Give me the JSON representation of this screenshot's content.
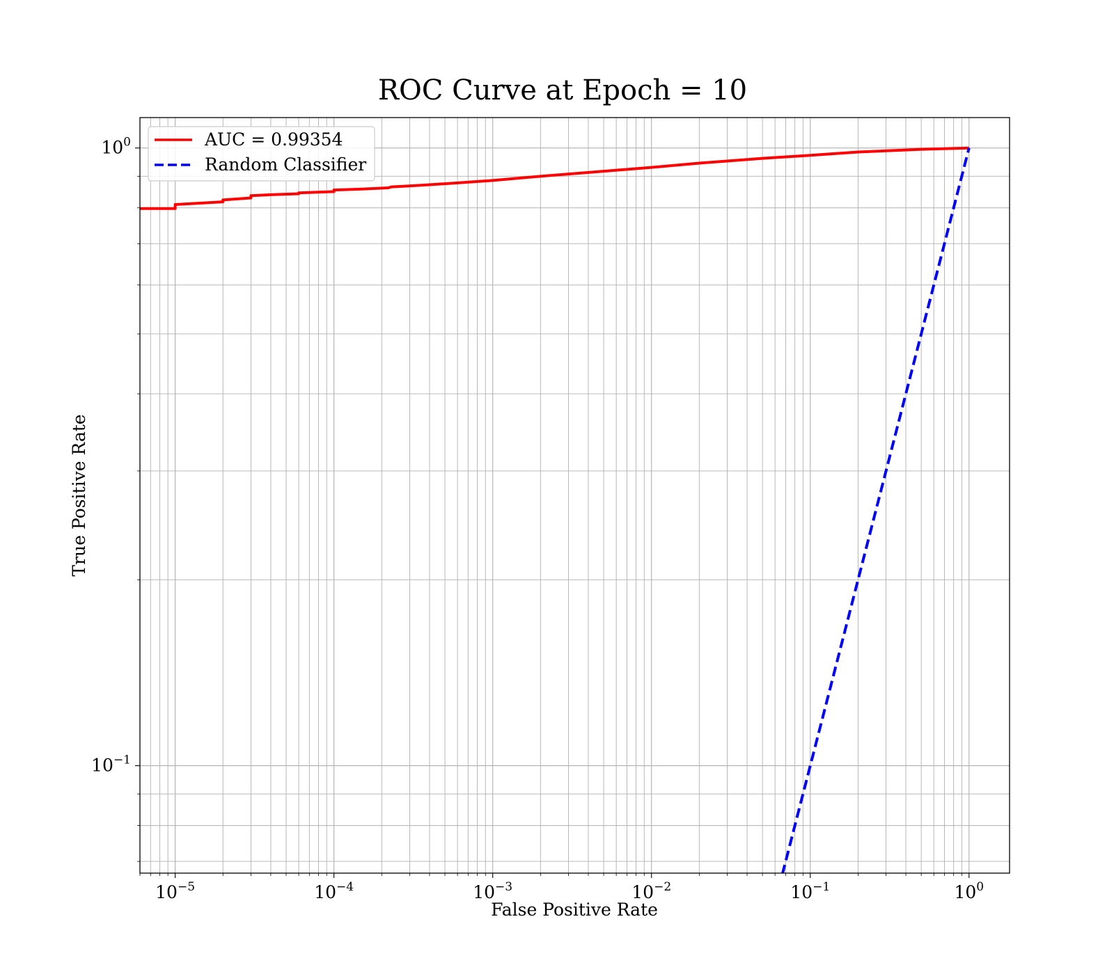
{
  "chart_data": {
    "type": "line",
    "title": "ROC Curve at Epoch = 10",
    "xlabel": "False Positive Rate",
    "ylabel": "True Positive Rate",
    "xscale": "log",
    "yscale": "log",
    "xlim": [
      6e-06,
      1.8
    ],
    "ylim": [
      0.067,
      1.12
    ],
    "grid": true,
    "grid_which": "both",
    "legend_position": "upper-left",
    "x_ticks": [
      {
        "base": "10",
        "exp": "−5",
        "value": 1e-05
      },
      {
        "base": "10",
        "exp": "−4",
        "value": 0.0001
      },
      {
        "base": "10",
        "exp": "−3",
        "value": 0.001
      },
      {
        "base": "10",
        "exp": "−2",
        "value": 0.01
      },
      {
        "base": "10",
        "exp": "−1",
        "value": 0.1
      },
      {
        "base": "10",
        "exp": "0",
        "value": 1
      }
    ],
    "y_ticks": [
      {
        "base": "10",
        "exp": "−1",
        "value": 0.1
      },
      {
        "base": "10",
        "exp": "0",
        "value": 1
      }
    ],
    "series": [
      {
        "name": "AUC = 0.99354",
        "color": "#ff0000",
        "style": "solid",
        "x": [
          6e-06,
          1e-05,
          1e-05,
          2e-05,
          2e-05,
          3e-05,
          3e-05,
          4e-05,
          6e-05,
          6e-05,
          0.0001,
          0.0001,
          0.00015,
          0.00022,
          0.00023,
          0.0003,
          0.0004,
          0.0006,
          0.001,
          0.002,
          0.005,
          0.01,
          0.02,
          0.05,
          0.1,
          0.2,
          0.5,
          1.0
        ],
        "y": [
          0.798,
          0.798,
          0.81,
          0.818,
          0.824,
          0.83,
          0.837,
          0.84,
          0.843,
          0.846,
          0.85,
          0.855,
          0.858,
          0.862,
          0.865,
          0.868,
          0.872,
          0.878,
          0.886,
          0.9,
          0.917,
          0.93,
          0.945,
          0.962,
          0.973,
          0.985,
          0.995,
          1.0
        ]
      },
      {
        "name": "Random Classifier",
        "color": "#0000ff",
        "style": "dashed",
        "x": [
          0.0667,
          1.0
        ],
        "y": [
          0.0667,
          1.0
        ]
      }
    ]
  }
}
